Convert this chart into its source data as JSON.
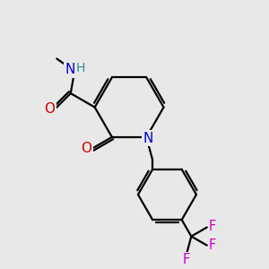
{
  "background_color": "#e8e8e8",
  "bond_color": "#000000",
  "N_color": "#0000cc",
  "H_color": "#2f8f8f",
  "O_color": "#cc0000",
  "F_color": "#cc00cc",
  "line_width": 1.6,
  "figsize": [
    3.0,
    3.0
  ],
  "dpi": 100,
  "xlim": [
    0,
    10
  ],
  "ylim": [
    0,
    10
  ]
}
